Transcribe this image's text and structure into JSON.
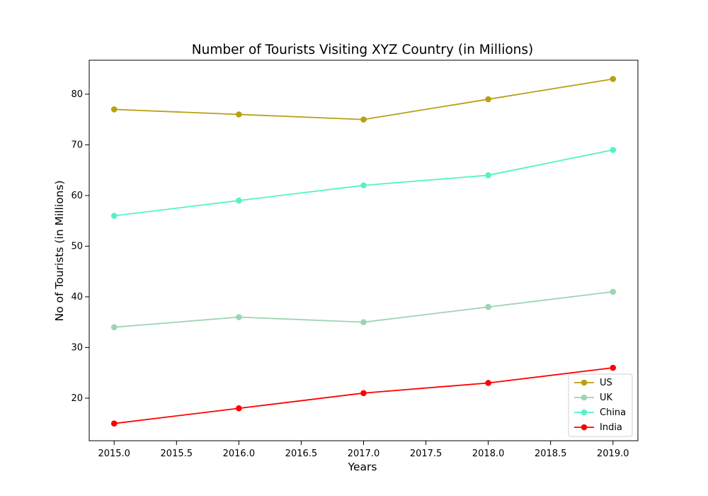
{
  "chart_data": {
    "type": "line",
    "title": "Number of Tourists Visiting XYZ Country (in Millions)",
    "xlabel": "Years",
    "ylabel": "No of Tourists (in Millions)",
    "x": [
      2015,
      2016,
      2017,
      2018,
      2019
    ],
    "xlim": [
      2014.8,
      2019.2
    ],
    "ylim": [
      11.6,
      86.7
    ],
    "xticks": [
      "2015.0",
      "2015.5",
      "2016.0",
      "2016.5",
      "2017.0",
      "2017.5",
      "2018.0",
      "2018.5",
      "2019.0"
    ],
    "yticks": [
      "20",
      "30",
      "40",
      "50",
      "60",
      "70",
      "80"
    ],
    "series": [
      {
        "name": "US",
        "color": "#b8a015",
        "values": [
          77,
          76,
          75,
          79,
          83
        ]
      },
      {
        "name": "UK",
        "color": "#9ed4b3",
        "values": [
          34,
          36,
          35,
          38,
          41
        ]
      },
      {
        "name": "China",
        "color": "#55f2c8",
        "values": [
          56,
          59,
          62,
          64,
          69
        ]
      },
      {
        "name": "India",
        "color": "#ff0000",
        "values": [
          15,
          18,
          21,
          23,
          26
        ]
      }
    ],
    "legend": "lower-right",
    "grid": false,
    "markers": "circle"
  }
}
